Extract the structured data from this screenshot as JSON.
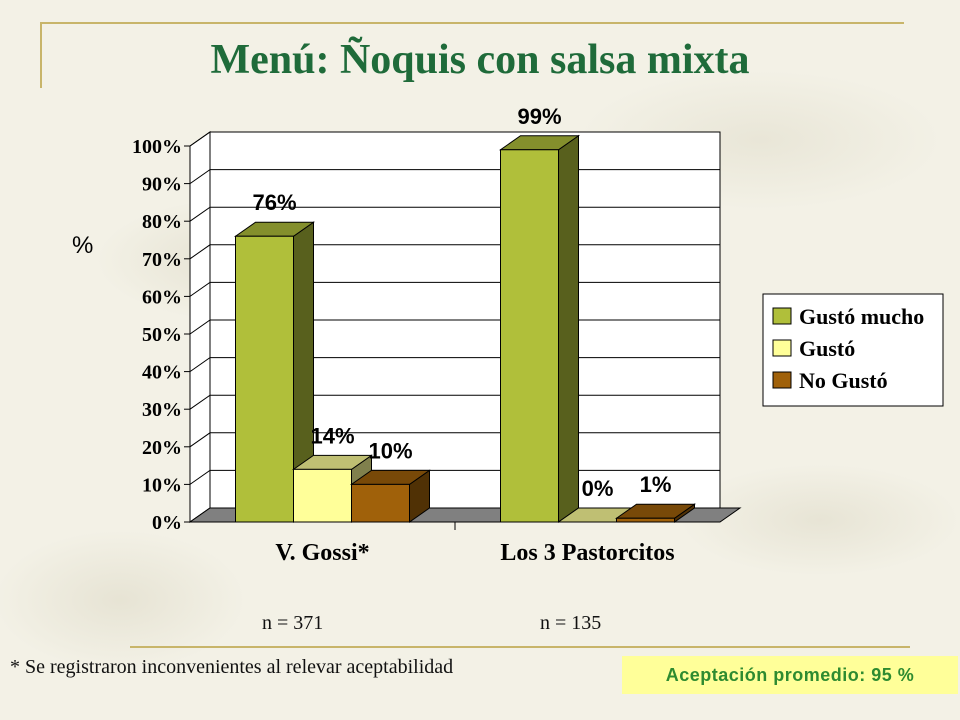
{
  "page": {
    "title": "Menú: Ñoquis con salsa mixta",
    "footnote": "* Se registraron inconvenientes al relevar aceptabilidad",
    "acceptance": "Aceptación promedio: 95 %",
    "n_labels": [
      "n = 371",
      "n = 135"
    ]
  },
  "chart_data": {
    "type": "bar",
    "title": "",
    "xlabel": "",
    "ylabel": "%",
    "ylim": [
      0,
      100
    ],
    "yticks": [
      "0%",
      "10%",
      "20%",
      "30%",
      "40%",
      "50%",
      "60%",
      "70%",
      "80%",
      "90%",
      "100%"
    ],
    "categories": [
      "V. Gossi*",
      "Los 3 Pastorcitos"
    ],
    "series": [
      {
        "name": "Gustó mucho",
        "values": [
          76,
          99
        ],
        "labels": [
          "76%",
          "99%"
        ],
        "color": "#b0bf3a"
      },
      {
        "name": "Gustó",
        "values": [
          14,
          0
        ],
        "labels": [
          "14%",
          "0%"
        ],
        "color": "#ffff99"
      },
      {
        "name": "No Gustó",
        "values": [
          10,
          1
        ],
        "labels": [
          "10%",
          "1%"
        ],
        "color": "#a0610a"
      }
    ],
    "legend_position": "right",
    "grid": true
  }
}
